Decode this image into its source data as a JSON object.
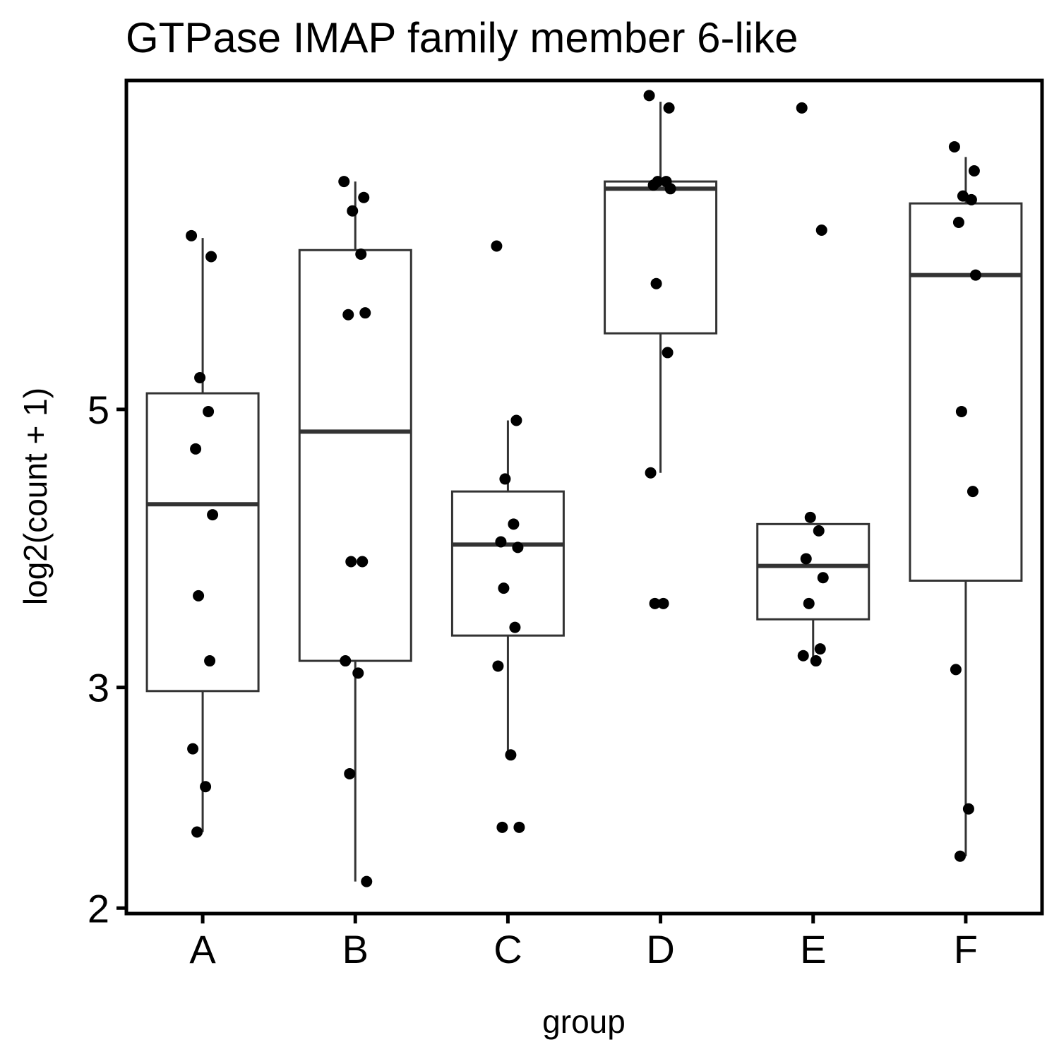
{
  "chart_data": {
    "type": "box",
    "title": "GTPase IMAP family member 6-like",
    "xlabel": "group",
    "ylabel": "log2(count + 1)",
    "y_scale": "log2",
    "ylim": [
      1.98,
      9.15
    ],
    "y_ticks": [
      2,
      3,
      5
    ],
    "grid": false,
    "categories": [
      "A",
      "B",
      "C",
      "D",
      "E",
      "F"
    ],
    "boxes": [
      {
        "group": "A",
        "whisker_low": 2.3,
        "q1": 2.98,
        "median": 4.2,
        "q3": 5.15,
        "whisker_high": 6.85
      },
      {
        "group": "B",
        "whisker_low": 2.1,
        "q1": 3.15,
        "median": 4.8,
        "q3": 6.7,
        "whisker_high": 7.6
      },
      {
        "group": "C",
        "whisker_low": 2.65,
        "q1": 3.3,
        "median": 3.9,
        "q3": 4.3,
        "whisker_high": 4.9
      },
      {
        "group": "D",
        "whisker_low": 4.45,
        "q1": 5.75,
        "median": 7.5,
        "q3": 7.6,
        "whisker_high": 8.8
      },
      {
        "group": "E",
        "whisker_low": 3.15,
        "q1": 3.4,
        "median": 3.75,
        "q3": 4.05,
        "whisker_high": 4.05
      },
      {
        "group": "F",
        "whisker_low": 2.2,
        "q1": 3.65,
        "median": 6.4,
        "q3": 7.3,
        "whisker_high": 7.95
      }
    ],
    "points": [
      {
        "group": "A",
        "values": [
          6.88,
          6.62,
          5.3,
          4.98,
          4.65,
          4.12,
          3.55,
          3.15,
          2.68,
          2.5,
          2.3
        ]
      },
      {
        "group": "B",
        "values": [
          7.6,
          7.38,
          7.2,
          6.65,
          5.95,
          5.97,
          3.78,
          3.78,
          3.15,
          3.08,
          2.56,
          2.1
        ]
      },
      {
        "group": "C",
        "values": [
          6.75,
          4.9,
          4.4,
          4.05,
          3.92,
          3.88,
          3.6,
          3.35,
          3.12,
          2.65,
          2.32,
          2.32
        ]
      },
      {
        "group": "D",
        "values": [
          8.9,
          8.7,
          7.6,
          7.6,
          7.55,
          7.5,
          6.3,
          5.55,
          4.45,
          3.5,
          3.5
        ]
      },
      {
        "group": "E",
        "values": [
          8.7,
          6.95,
          4.1,
          4.0,
          3.8,
          3.67,
          3.5,
          3.22,
          3.18,
          3.15
        ]
      },
      {
        "group": "F",
        "values": [
          8.1,
          7.75,
          7.4,
          7.35,
          7.05,
          6.4,
          4.98,
          4.3,
          3.1,
          2.4,
          2.2
        ]
      }
    ]
  }
}
